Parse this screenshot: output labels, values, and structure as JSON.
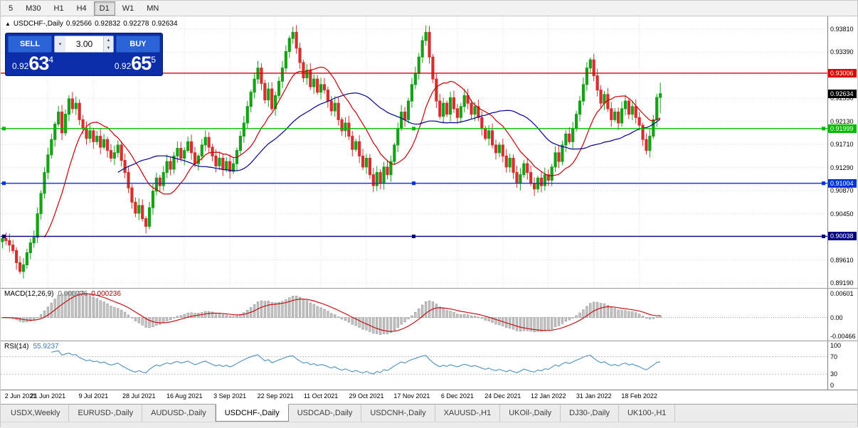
{
  "toolbar": {
    "timeframes": [
      "5",
      "M30",
      "H1",
      "H4",
      "D1",
      "W1",
      "MN"
    ],
    "active_timeframe": "D1"
  },
  "chart_header": {
    "collapse_icon": "▲",
    "symbol": "USDCHF-,Daily",
    "open": "0.92566",
    "high": "0.92832",
    "low": "0.92278",
    "close": "0.92634"
  },
  "trade_panel": {
    "sell_label": "SELL",
    "buy_label": "BUY",
    "volume": "3.00",
    "sell_price": {
      "prefix": "0.92",
      "big": "63",
      "sup": "4"
    },
    "buy_price": {
      "prefix": "0.92",
      "big": "65",
      "sup": "5"
    }
  },
  "chart_data": {
    "type": "candlestick",
    "symbol": "USDCHF",
    "timeframe": "Daily",
    "title": "USDCHF-,Daily",
    "last_ohlc": {
      "open": 0.92566,
      "high": 0.92832,
      "low": 0.92278,
      "close": 0.92634
    },
    "price_range": {
      "top": 0.9404,
      "bottom": 0.891
    },
    "bars_fraction": 0.8,
    "price_axis_labels": [
      "0.93810",
      "0.93390",
      "0.92970",
      "0.92550",
      "0.92130",
      "0.91710",
      "0.91290",
      "0.90870",
      "0.90450",
      "0.90030",
      "0.89610",
      "0.89190"
    ],
    "date_axis_labels": [
      "2 Jun 2021",
      "21 Jun 2021",
      "9 Jul 2021",
      "28 Jul 2021",
      "16 Aug 2021",
      "3 Sep 2021",
      "22 Sep 2021",
      "11 Oct 2021",
      "29 Oct 2021",
      "17 Nov 2021",
      "6 Dec 2021",
      "24 Dec 2021",
      "12 Jan 2022",
      "31 Jan 2022",
      "18 Feb 2022"
    ],
    "closes": [
      0.9,
      0.8996,
      0.8988,
      0.8978,
      0.8956,
      0.894,
      0.8952,
      0.8974,
      0.8992,
      0.9002,
      0.9045,
      0.9082,
      0.912,
      0.9152,
      0.918,
      0.9208,
      0.923,
      0.9192,
      0.9226,
      0.9254,
      0.9236,
      0.9246,
      0.9216,
      0.92,
      0.9182,
      0.9196,
      0.9176,
      0.9186,
      0.9166,
      0.918,
      0.916,
      0.9146,
      0.9156,
      0.917,
      0.9142,
      0.912,
      0.9092,
      0.9066,
      0.9046,
      0.906,
      0.9036,
      0.9022,
      0.9056,
      0.9086,
      0.911,
      0.9096,
      0.912,
      0.914,
      0.9126,
      0.915,
      0.9164,
      0.9146,
      0.916,
      0.9176,
      0.9156,
      0.9136,
      0.915,
      0.917,
      0.9184,
      0.9166,
      0.915,
      0.9132,
      0.9146,
      0.9126,
      0.914,
      0.9122,
      0.9136,
      0.916,
      0.9186,
      0.921,
      0.924,
      0.9266,
      0.929,
      0.931,
      0.9282,
      0.9252,
      0.9272,
      0.9236,
      0.926,
      0.9286,
      0.931,
      0.934,
      0.9364,
      0.9375,
      0.9346,
      0.932,
      0.9292,
      0.9306,
      0.9276,
      0.929,
      0.9266,
      0.928,
      0.927,
      0.925,
      0.9232,
      0.9246,
      0.9216,
      0.9196,
      0.921,
      0.9186,
      0.9162,
      0.9176,
      0.915,
      0.913,
      0.9146,
      0.9116,
      0.9096,
      0.912,
      0.91,
      0.913,
      0.9116,
      0.914,
      0.917,
      0.92,
      0.923,
      0.9216,
      0.925,
      0.928,
      0.93,
      0.933,
      0.936,
      0.9375,
      0.933,
      0.929,
      0.925,
      0.9222,
      0.9246,
      0.9226,
      0.9256,
      0.9236,
      0.922,
      0.924,
      0.926,
      0.9246,
      0.9226,
      0.924,
      0.922,
      0.92,
      0.9182,
      0.9196,
      0.917,
      0.9156,
      0.917,
      0.915,
      0.913,
      0.9146,
      0.912,
      0.91,
      0.9116,
      0.9136,
      0.912,
      0.91,
      0.909,
      0.911,
      0.9096,
      0.9116,
      0.9106,
      0.913,
      0.9156,
      0.914,
      0.917,
      0.919,
      0.9176,
      0.92,
      0.9226,
      0.925,
      0.928,
      0.931,
      0.9325,
      0.9296,
      0.927,
      0.9246,
      0.9262,
      0.9236,
      0.9216,
      0.923,
      0.921,
      0.9236,
      0.925,
      0.9226,
      0.924,
      0.922,
      0.9206,
      0.918,
      0.916,
      0.9186,
      0.9216,
      0.92566,
      0.92634
    ],
    "horizontal_lines": [
      {
        "price": 0.93006,
        "label": "0.93006",
        "color": "#dd0000",
        "selected": false
      },
      {
        "price": 0.91999,
        "label": "0.91999",
        "color": "#00bb00",
        "selected": true
      },
      {
        "price": 0.91004,
        "label": "0.91004",
        "color": "#0033dd",
        "selected": true
      },
      {
        "price": 0.90038,
        "label": "0.90038",
        "color": "#000080",
        "selected": true
      }
    ],
    "current_price": {
      "value": 0.92634,
      "label": "0.92634",
      "badge_color": "#000000"
    },
    "moving_averages": [
      {
        "period": 13,
        "color": "#c80000"
      },
      {
        "period": 34,
        "color": "#000096"
      }
    ],
    "colors": {
      "bull": "#18a018",
      "bear": "#d43030",
      "grid": "#dcdcdc",
      "background": "#ffffff"
    },
    "indicators": {
      "macd": {
        "name": "MACD(12,26,9)",
        "values": [
          "0.000276",
          "0.000236"
        ],
        "fast": 12,
        "slow": 26,
        "signal": 9,
        "axis_labels": [
          "0.00601",
          "0.00",
          "-0.00466"
        ],
        "axis_top": 0.00601,
        "axis_bottom": -0.00466,
        "hist_color": "#c4c4c4",
        "hist_stroke": "#8a8a8a",
        "signal_color": "#c80000"
      },
      "rsi": {
        "name": "RSI(14)",
        "value": "55.9237",
        "period": 14,
        "axis_labels": [
          "100",
          "70",
          "30",
          "0"
        ],
        "levels": [
          70,
          30
        ],
        "line_color": "#4a90c2"
      }
    }
  },
  "tabs": [
    {
      "label": "USDX,Weekly"
    },
    {
      "label": "EURUSD-,Daily"
    },
    {
      "label": "AUDUSD-,Daily"
    },
    {
      "label": "USDCHF-,Daily"
    },
    {
      "label": "USDCAD-,Daily"
    },
    {
      "label": "USDCNH-,Daily"
    },
    {
      "label": "XAUUSD-,H1"
    },
    {
      "label": "UKOil-,Daily"
    },
    {
      "label": "DJ30-,Daily"
    },
    {
      "label": "UK100-,H1"
    }
  ],
  "active_tab": "USDCHF-,Daily"
}
